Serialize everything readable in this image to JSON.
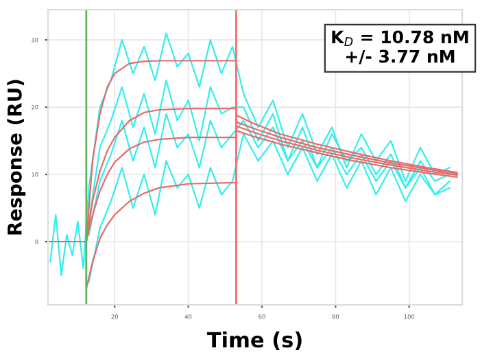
{
  "chart_data": {
    "type": "line",
    "xlabel": "Time (s)",
    "ylabel": "Response (RU)",
    "xlim": [
      1.9,
      114.4
    ],
    "ylim": [
      -9.4,
      34.5
    ],
    "xticks": [
      20,
      40,
      60,
      80,
      100
    ],
    "yticks": [
      0,
      10,
      20,
      30
    ],
    "grid": true,
    "legend": false,
    "marker": "none",
    "line_style": "solid",
    "annotations": [
      "K$_{D}$ = 10.78 nM\n+/- 3.77 nM"
    ],
    "ref_lines": [
      {
        "axis": "x",
        "value": 12.3,
        "color": "#5cb85c"
      },
      {
        "axis": "x",
        "value": 53,
        "color": "#ff6b6b"
      }
    ],
    "series": [
      {
        "color": "#33eeee",
        "x": [
          2.5,
          4,
          5.5,
          7,
          8.5,
          10,
          11.5,
          13,
          16,
          19,
          22,
          25,
          28,
          31,
          34,
          37,
          40,
          43,
          46,
          49,
          52,
          55,
          59,
          63,
          67,
          71,
          75,
          79,
          83,
          87,
          91,
          95,
          99,
          103,
          107,
          111
        ],
        "values": [
          -3,
          4,
          -5,
          1,
          -2,
          3,
          -4,
          8,
          20,
          24,
          30,
          25,
          29,
          24,
          31,
          26,
          28,
          23,
          30,
          25,
          29,
          22,
          17,
          21,
          14,
          19,
          13,
          17,
          11,
          16,
          12,
          15,
          9,
          14,
          10,
          11
        ]
      },
      {
        "color": "#33eeee",
        "x": [
          13,
          16,
          19,
          22,
          25,
          28,
          31,
          34,
          37,
          40,
          43,
          46,
          49,
          52,
          55,
          59,
          63,
          67,
          71,
          75,
          79,
          83,
          87,
          91,
          95,
          99,
          103,
          107,
          111
        ],
        "values": [
          3,
          14,
          18,
          23,
          17,
          22,
          16,
          24,
          18,
          21,
          15,
          23,
          19,
          20,
          20,
          15,
          19,
          12,
          17,
          11,
          16,
          12,
          14,
          10,
          13,
          8,
          12,
          9,
          10
        ]
      },
      {
        "color": "#33eeee",
        "x": [
          13,
          16,
          19,
          22,
          25,
          28,
          31,
          34,
          37,
          40,
          43,
          46,
          49,
          52,
          55,
          59,
          63,
          67,
          71,
          75,
          79,
          83,
          87,
          91,
          95,
          99,
          103,
          107,
          111
        ],
        "values": [
          1,
          9,
          13,
          18,
          12,
          17,
          11,
          19,
          14,
          16,
          11,
          18,
          14,
          16,
          18,
          14,
          17,
          12,
          15,
          11,
          14,
          10,
          13,
          9,
          12,
          8,
          11,
          7,
          9
        ]
      },
      {
        "color": "#33eeee",
        "x": [
          13,
          16,
          19,
          22,
          25,
          28,
          31,
          34,
          37,
          40,
          43,
          46,
          49,
          52,
          55,
          59,
          63,
          67,
          71,
          75,
          79,
          83,
          87,
          91,
          95,
          99,
          103,
          107,
          111
        ],
        "values": [
          -6,
          2,
          6,
          11,
          5,
          10,
          4,
          12,
          8,
          10,
          5,
          11,
          7,
          9,
          16,
          12,
          15,
          10,
          14,
          9,
          13,
          8,
          12,
          7,
          11,
          6,
          10,
          7,
          8
        ]
      },
      {
        "color": "#e86a6a",
        "x": [
          12.3,
          14,
          16,
          18,
          20,
          24,
          28,
          32,
          40,
          53,
          53,
          58,
          65,
          75,
          85,
          95,
          105,
          113
        ],
        "values": [
          0,
          12,
          19,
          23,
          25,
          26.5,
          26.8,
          26.9,
          26.9,
          26.9,
          18.8,
          17.5,
          16,
          14.5,
          13.2,
          12,
          11,
          10.3
        ]
      },
      {
        "color": "#e86a6a",
        "x": [
          12.3,
          14,
          16,
          18,
          20,
          24,
          28,
          32,
          40,
          53,
          53,
          58,
          65,
          75,
          85,
          95,
          105,
          113
        ],
        "values": [
          0,
          6,
          10.5,
          13.5,
          15.5,
          18,
          19.2,
          19.6,
          19.8,
          19.8,
          17.8,
          16.8,
          15.5,
          14,
          12.8,
          11.7,
          10.8,
          10.1
        ]
      },
      {
        "color": "#e86a6a",
        "x": [
          12.3,
          14,
          16,
          18,
          20,
          24,
          28,
          32,
          40,
          53,
          53,
          58,
          65,
          75,
          85,
          95,
          105,
          113
        ],
        "values": [
          0,
          4,
          7.5,
          10,
          11.8,
          13.8,
          14.8,
          15.2,
          15.5,
          15.5,
          17.2,
          16.2,
          15,
          13.6,
          12.4,
          11.4,
          10.5,
          9.9
        ]
      },
      {
        "color": "#e86a6a",
        "x": [
          2,
          12.3,
          12.3,
          14,
          16,
          18,
          20,
          24,
          28,
          32,
          40,
          53,
          53,
          58,
          65,
          75,
          85,
          95,
          105,
          113
        ],
        "values": [
          0,
          0,
          -7,
          -3,
          0.5,
          2.5,
          4,
          6,
          7.2,
          8,
          8.6,
          8.8,
          16.5,
          15.6,
          14.5,
          13.2,
          12,
          11,
          10.2,
          9.6
        ]
      }
    ]
  }
}
